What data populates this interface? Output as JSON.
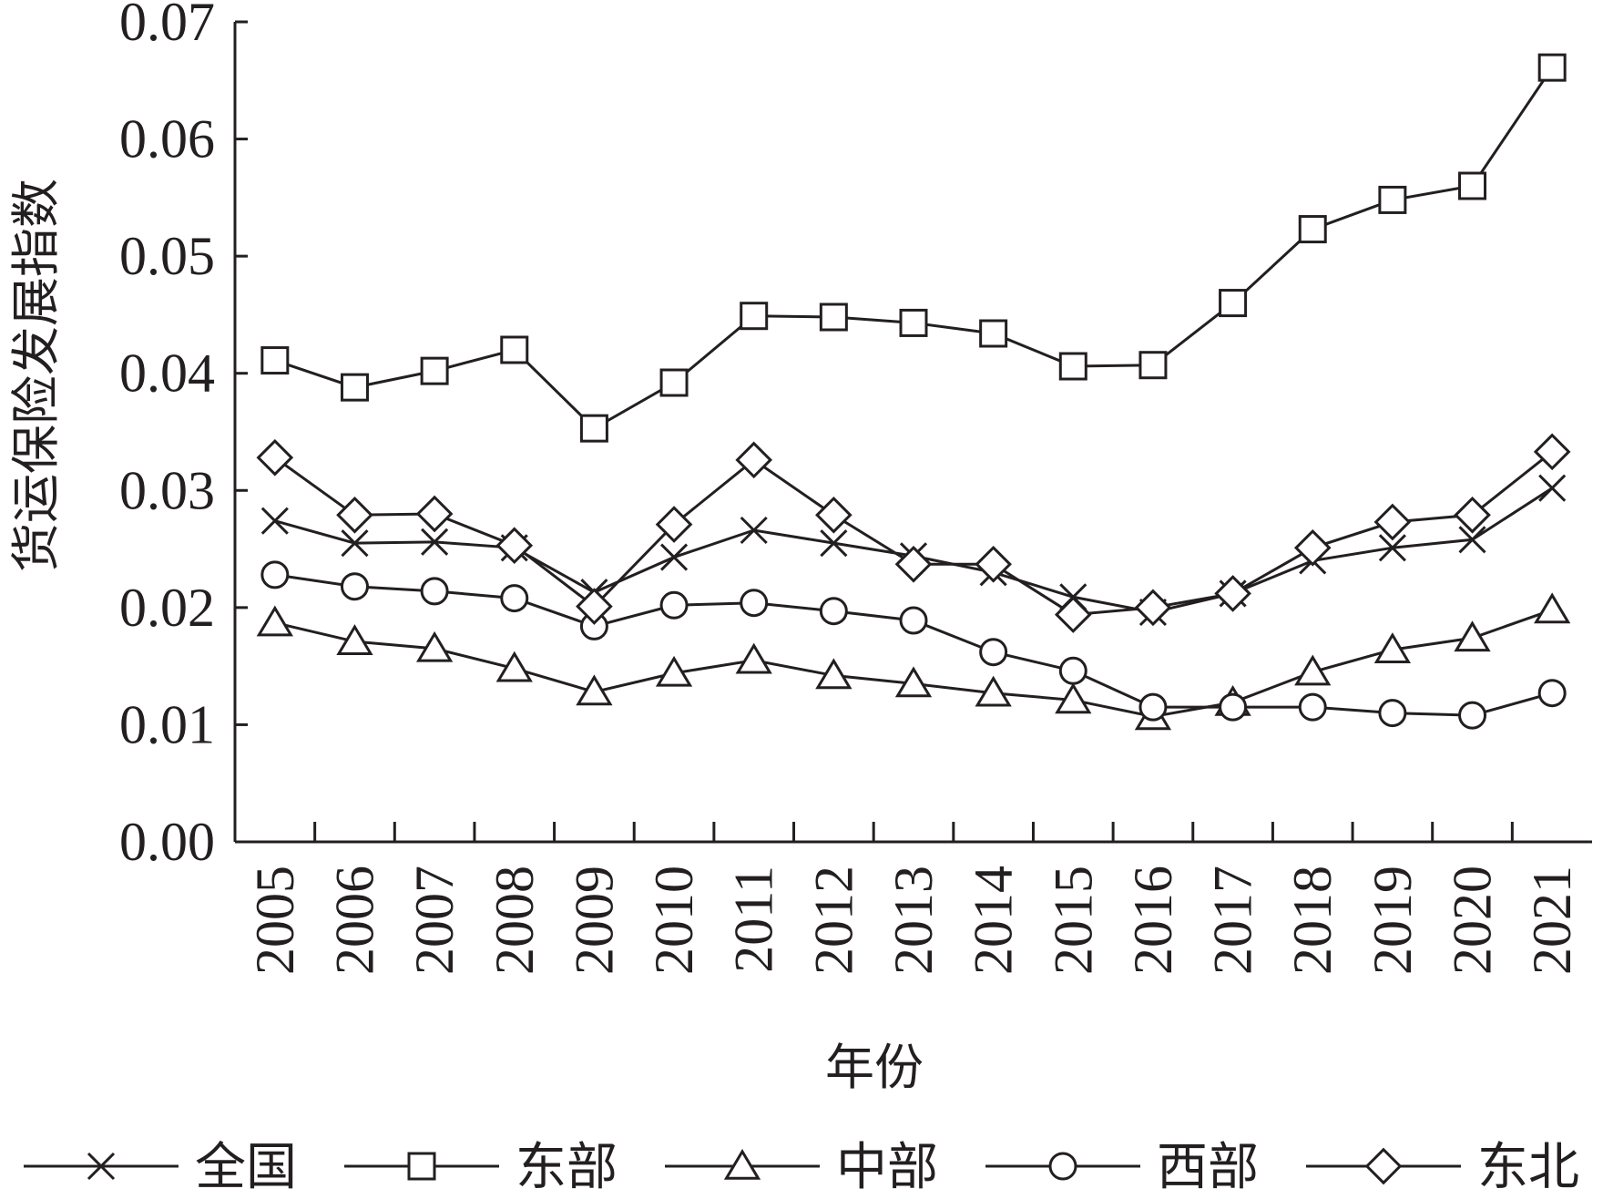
{
  "chart_data": {
    "type": "line",
    "title": "",
    "xlabel": "年份",
    "ylabel": "货运保险发展指数",
    "ylim": [
      0,
      0.07
    ],
    "yticks": [
      "0.00",
      "0.01",
      "0.02",
      "0.03",
      "0.04",
      "0.05",
      "0.06",
      "0.07"
    ],
    "categories": [
      "2005",
      "2006",
      "2007",
      "2008",
      "2009",
      "2010",
      "2011",
      "2012",
      "2013",
      "2014",
      "2015",
      "2016",
      "2017",
      "2018",
      "2019",
      "2020",
      "2021"
    ],
    "grid": false,
    "legend_position": "bottom",
    "series": [
      {
        "name": "全国",
        "marker": "x",
        "values": [
          0.0274,
          0.0255,
          0.0256,
          0.0251,
          0.0213,
          0.0243,
          0.0266,
          0.0255,
          0.0244,
          0.023,
          0.0209,
          0.0196,
          0.0212,
          0.024,
          0.0251,
          0.0258,
          0.0302
        ]
      },
      {
        "name": "东部",
        "marker": "square",
        "values": [
          0.0411,
          0.0388,
          0.0402,
          0.042,
          0.0353,
          0.0392,
          0.0449,
          0.0448,
          0.0443,
          0.0434,
          0.0406,
          0.0407,
          0.046,
          0.0523,
          0.0548,
          0.056,
          0.0661
        ]
      },
      {
        "name": "中部",
        "marker": "triangle",
        "values": [
          0.0187,
          0.0171,
          0.0165,
          0.0148,
          0.0128,
          0.0144,
          0.0155,
          0.0142,
          0.0135,
          0.0127,
          0.0121,
          0.0107,
          0.0119,
          0.0145,
          0.0164,
          0.0174,
          0.0198
        ]
      },
      {
        "name": "西部",
        "marker": "circle",
        "values": [
          0.0228,
          0.0218,
          0.0214,
          0.0208,
          0.0184,
          0.0202,
          0.0204,
          0.0197,
          0.0189,
          0.0162,
          0.0146,
          0.0115,
          0.0115,
          0.0115,
          0.011,
          0.0108,
          0.0127
        ]
      },
      {
        "name": "东北",
        "marker": "diamond",
        "values": [
          0.0328,
          0.0279,
          0.028,
          0.0253,
          0.0201,
          0.0271,
          0.0326,
          0.0279,
          0.0237,
          0.0237,
          0.0194,
          0.02,
          0.0212,
          0.0251,
          0.0273,
          0.0279,
          0.0333
        ]
      }
    ]
  }
}
